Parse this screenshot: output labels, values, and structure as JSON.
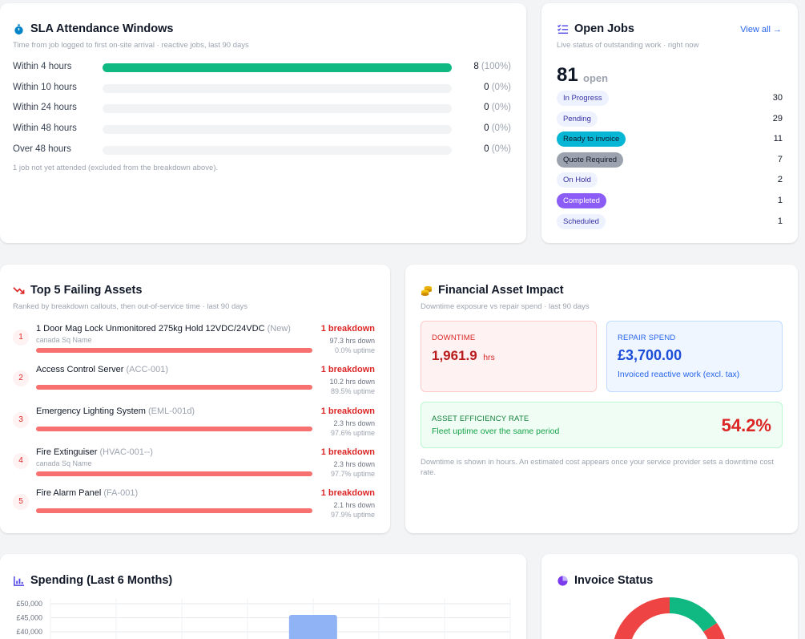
{
  "sla": {
    "title": "SLA Attendance Windows",
    "subtitle": "Time from job logged to first on-site arrival · reactive jobs, last 90 days",
    "rows": [
      {
        "label": "Within 4 hours",
        "count": "8",
        "pct": "(100%)",
        "fraction": 1.0
      },
      {
        "label": "Within 10 hours",
        "count": "0",
        "pct": "(0%)",
        "fraction": 0
      },
      {
        "label": "Within 24 hours",
        "count": "0",
        "pct": "(0%)",
        "fraction": 0
      },
      {
        "label": "Within 48 hours",
        "count": "0",
        "pct": "(0%)",
        "fraction": 0
      },
      {
        "label": "Over 48 hours",
        "count": "0",
        "pct": "(0%)",
        "fraction": 0
      }
    ],
    "footnote": "1 job not yet attended (excluded from the breakdown above).",
    "bar_color": "#10b981"
  },
  "open_jobs": {
    "title": "Open Jobs",
    "view_all": "View all →",
    "subtitle": "Live status of outstanding work · right now",
    "total": "81",
    "total_label": "open",
    "statuses": [
      {
        "label": "In Progress",
        "count": "30",
        "bg": "#eef2ff",
        "fg": "#3730a3"
      },
      {
        "label": "Pending",
        "count": "29",
        "bg": "#eef2ff",
        "fg": "#3730a3"
      },
      {
        "label": "Ready to invoice",
        "count": "11",
        "bg": "#06b6d4",
        "fg": "#0f172a"
      },
      {
        "label": "Quote Required",
        "count": "7",
        "bg": "#9ca3af",
        "fg": "#111827"
      },
      {
        "label": "On Hold",
        "count": "2",
        "bg": "#eef2ff",
        "fg": "#3730a3"
      },
      {
        "label": "Completed",
        "count": "1",
        "bg": "#8b5cf6",
        "fg": "#ffffff"
      },
      {
        "label": "Scheduled",
        "count": "1",
        "bg": "#eef2ff",
        "fg": "#3730a3"
      }
    ]
  },
  "failing": {
    "title": "Top 5 Failing Assets",
    "subtitle": "Ranked by breakdown callouts, then out-of-service time · last 90 days",
    "assets": [
      {
        "rank": "1",
        "name": "1 Door Mag Lock Unmonitored 275kg Hold 12VDC/24VDC",
        "code": "(New)",
        "site": "canada Sq Name",
        "breakdowns": "1 breakdown",
        "down": "97.3 hrs down",
        "uptime": "0.0% uptime"
      },
      {
        "rank": "2",
        "name": "Access Control Server",
        "code": "(ACC-001)",
        "site": "",
        "breakdowns": "1 breakdown",
        "down": "10.2 hrs down",
        "uptime": "89.5% uptime"
      },
      {
        "rank": "3",
        "name": "Emergency Lighting System",
        "code": "(EML-001d)",
        "site": "",
        "breakdowns": "1 breakdown",
        "down": "2.3 hrs down",
        "uptime": "97.6% uptime"
      },
      {
        "rank": "4",
        "name": "Fire Extinguiser",
        "code": "(HVAC-001--)",
        "site": "canada Sq Name",
        "breakdowns": "1 breakdown",
        "down": "2.3 hrs down",
        "uptime": "97.7% uptime"
      },
      {
        "rank": "5",
        "name": "Fire Alarm Panel",
        "code": "(FA-001)",
        "site": "",
        "breakdowns": "1 breakdown",
        "down": "2.1 hrs down",
        "uptime": "97.9% uptime"
      }
    ]
  },
  "financial": {
    "title": "Financial Asset Impact",
    "subtitle": "Downtime exposure vs repair spend · last 90 days",
    "downtime_label": "DOWNTIME",
    "downtime_value": "1,961.9",
    "downtime_unit": "hrs",
    "repair_label": "REPAIR SPEND",
    "repair_value": "£3,700.00",
    "repair_note": "Invoiced reactive work (excl. tax)",
    "efficiency_label": "ASSET EFFICIENCY RATE",
    "efficiency_note": "Fleet uptime over the same period",
    "efficiency_value": "54.2%",
    "footnote": "Downtime is shown in hours. An estimated cost appears once your service provider sets a downtime cost rate."
  },
  "spending": {
    "title": "Spending (Last 6 Months)"
  },
  "invoice_status": {
    "title": "Invoice Status"
  },
  "chart_data": {
    "type": "bar",
    "title": "Spending (Last 6 Months)",
    "yticks": [
      "£50,000",
      "£45,000",
      "£40,000"
    ],
    "ylim_visible": [
      40000,
      50000
    ],
    "values_visible": [
      null,
      null,
      null,
      46000,
      null,
      null
    ],
    "color": "#8fb3f5",
    "grid": true
  }
}
